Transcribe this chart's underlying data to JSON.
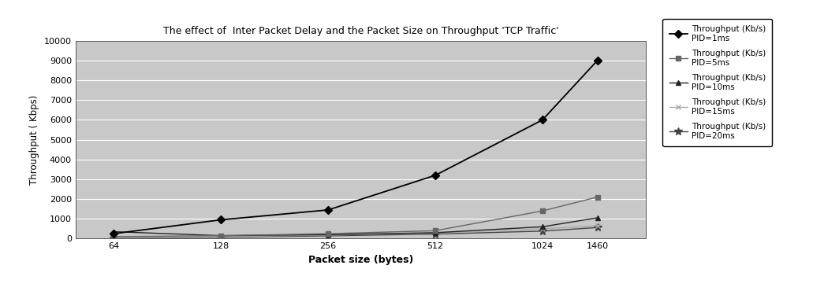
{
  "title": "The effect of  Inter Packet Delay and the Packet Size on Throughput 'TCP Traffic'",
  "xlabel": "Packet size (bytes)",
  "ylabel": "Throughput ( Kbps)",
  "x_values": [
    64,
    128,
    256,
    512,
    1024,
    1460
  ],
  "series": [
    {
      "label": "Throughput (Kb/s)\nPID=1ms",
      "values": [
        250,
        950,
        1450,
        3200,
        6000,
        9000
      ],
      "color": "#000000",
      "marker": "D",
      "markersize": 5,
      "linewidth": 1.3,
      "zorder": 5,
      "linestyle": "-"
    },
    {
      "label": "Throughput (Kb/s)\nPID=5ms",
      "values": [
        100,
        150,
        250,
        400,
        1400,
        2100
      ],
      "color": "#666666",
      "marker": "s",
      "markersize": 5,
      "linewidth": 1.0,
      "zorder": 4,
      "linestyle": "-"
    },
    {
      "label": "Throughput (Kb/s)\nPID=10ms",
      "values": [
        350,
        150,
        200,
        300,
        600,
        1050
      ],
      "color": "#222222",
      "marker": "^",
      "markersize": 5,
      "linewidth": 1.0,
      "zorder": 3,
      "linestyle": "-"
    },
    {
      "label": "Throughput (Kb/s)\nPID=15ms",
      "values": [
        50,
        100,
        180,
        280,
        500,
        650
      ],
      "color": "#aaaaaa",
      "marker": "x",
      "markersize": 5,
      "linewidth": 1.0,
      "zorder": 2,
      "linestyle": "-"
    },
    {
      "label": "Throughput (Kb/s)\nPID=20ms",
      "values": [
        30,
        70,
        140,
        230,
        380,
        560
      ],
      "color": "#444444",
      "marker": "*",
      "markersize": 7,
      "linewidth": 1.0,
      "zorder": 1,
      "linestyle": "-"
    }
  ],
  "ylim": [
    0,
    10000
  ],
  "yticks": [
    0,
    1000,
    2000,
    3000,
    4000,
    5000,
    6000,
    7000,
    8000,
    9000,
    10000
  ],
  "plot_bg_color": "#c8c8c8",
  "fig_bg_color": "#ffffff",
  "figsize": [
    10.64,
    3.7
  ],
  "dpi": 100
}
